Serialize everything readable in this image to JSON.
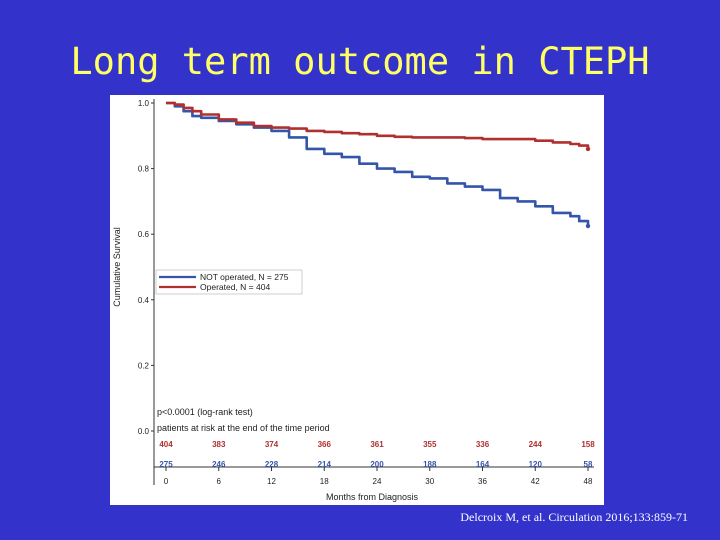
{
  "slide": {
    "title": "Long term outcome in CTEPH",
    "citation": "Delcroix M, et al. Circulation 2016;133:859-71"
  },
  "chart_data": {
    "type": "line",
    "subtype": "kaplan-meier",
    "title": "",
    "xlabel": "Months from Diagnosis",
    "ylabel": "Cumulative Survival",
    "xlim": [
      0,
      48
    ],
    "ylim": [
      0.0,
      1.0
    ],
    "x_ticks": [
      "0",
      "6",
      "12",
      "18",
      "24",
      "30",
      "36",
      "42",
      "48"
    ],
    "y_ticks": [
      "0.0",
      "0.2",
      "0.4",
      "0.6",
      "0.8",
      "1.0"
    ],
    "series": [
      {
        "name": "NOT operated, N = 275",
        "color": "#3355aa",
        "points": [
          [
            0,
            1.0
          ],
          [
            1,
            0.99
          ],
          [
            2,
            0.975
          ],
          [
            3,
            0.96
          ],
          [
            4,
            0.955
          ],
          [
            6,
            0.945
          ],
          [
            8,
            0.935
          ],
          [
            10,
            0.925
          ],
          [
            12,
            0.915
          ],
          [
            14,
            0.895
          ],
          [
            16,
            0.86
          ],
          [
            18,
            0.845
          ],
          [
            20,
            0.835
          ],
          [
            22,
            0.815
          ],
          [
            24,
            0.8
          ],
          [
            26,
            0.79
          ],
          [
            28,
            0.775
          ],
          [
            30,
            0.77
          ],
          [
            32,
            0.755
          ],
          [
            34,
            0.745
          ],
          [
            36,
            0.735
          ],
          [
            38,
            0.71
          ],
          [
            40,
            0.7
          ],
          [
            42,
            0.685
          ],
          [
            44,
            0.665
          ],
          [
            46,
            0.655
          ],
          [
            47,
            0.64
          ],
          [
            48,
            0.625
          ]
        ]
      },
      {
        "name": "Operated, N = 404",
        "color": "#b03030",
        "points": [
          [
            0,
            1.0
          ],
          [
            1,
            0.995
          ],
          [
            2,
            0.985
          ],
          [
            3,
            0.975
          ],
          [
            4,
            0.965
          ],
          [
            6,
            0.95
          ],
          [
            8,
            0.94
          ],
          [
            10,
            0.93
          ],
          [
            12,
            0.925
          ],
          [
            14,
            0.922
          ],
          [
            16,
            0.915
          ],
          [
            18,
            0.912
          ],
          [
            20,
            0.908
          ],
          [
            22,
            0.905
          ],
          [
            24,
            0.9
          ],
          [
            26,
            0.897
          ],
          [
            28,
            0.895
          ],
          [
            30,
            0.895
          ],
          [
            32,
            0.895
          ],
          [
            34,
            0.893
          ],
          [
            36,
            0.89
          ],
          [
            38,
            0.89
          ],
          [
            40,
            0.89
          ],
          [
            42,
            0.885
          ],
          [
            44,
            0.88
          ],
          [
            46,
            0.875
          ],
          [
            47,
            0.87
          ],
          [
            48,
            0.86
          ]
        ]
      }
    ],
    "annotations": {
      "pvalue": "p<0.0001 (log-rank test)",
      "risk_label": "patients at risk at the end of the time period"
    },
    "risk_table": {
      "operated": {
        "color": "#b03030",
        "values": [
          "404",
          "383",
          "374",
          "366",
          "361",
          "355",
          "336",
          "244",
          "158"
        ]
      },
      "not_operated": {
        "color": "#3355aa",
        "values": [
          "275",
          "246",
          "228",
          "214",
          "200",
          "188",
          "164",
          "120",
          "58"
        ]
      }
    }
  }
}
